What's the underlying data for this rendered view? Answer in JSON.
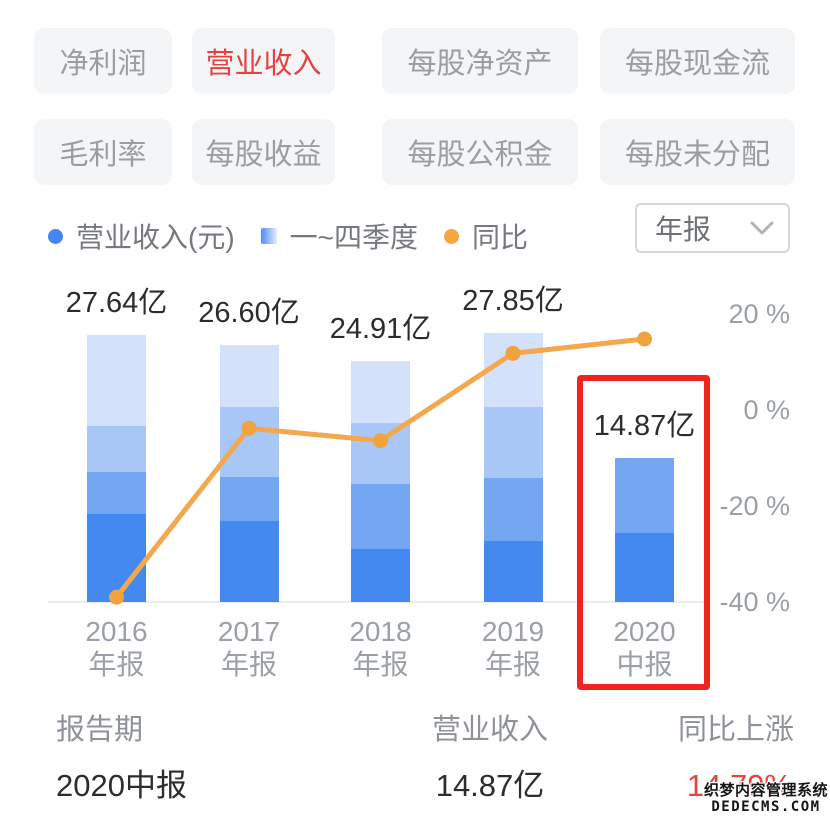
{
  "filters": {
    "row1": [
      {
        "label": "净利润",
        "active": false
      },
      {
        "label": "营业收入",
        "active": true
      },
      {
        "label": "每股净资产",
        "active": false
      },
      {
        "label": "每股现金流",
        "active": false
      }
    ],
    "row2": [
      {
        "label": "毛利率",
        "active": false
      },
      {
        "label": "每股收益",
        "active": false
      },
      {
        "label": "每股公积金",
        "active": false
      },
      {
        "label": "每股未分配",
        "active": false
      }
    ]
  },
  "legend": {
    "items": [
      {
        "label": "营业收入(元)",
        "swatch": "blue-dot"
      },
      {
        "label": "一~四季度",
        "swatch": "blue-gradient-square"
      },
      {
        "label": "同比",
        "swatch": "orange-dot"
      }
    ],
    "period_select": {
      "value": "年报"
    }
  },
  "chart_data": {
    "type": "bar",
    "subtype": "stacked-quarter-bars-with-yoy-line",
    "unit": "亿元",
    "categories": [
      "2016年报",
      "2017年报",
      "2018年报",
      "2019年报",
      "2020中报"
    ],
    "category_lines": [
      [
        "2016",
        "年报"
      ],
      [
        "2017",
        "年报"
      ],
      [
        "2018",
        "年报"
      ],
      [
        "2019",
        "年报"
      ],
      [
        "2020",
        "中报"
      ]
    ],
    "totals": [
      27.64,
      26.6,
      24.91,
      27.85,
      14.87
    ],
    "total_labels": [
      "27.64亿",
      "26.60亿",
      "24.91亿",
      "27.85亿",
      "14.87亿"
    ],
    "series": [
      {
        "name": "一季度",
        "values": [
          9.1,
          8.4,
          5.5,
          6.3,
          7.15
        ]
      },
      {
        "name": "二季度",
        "values": [
          4.35,
          4.5,
          6.7,
          6.5,
          7.72
        ]
      },
      {
        "name": "三季度",
        "values": [
          4.75,
          7.25,
          6.35,
          7.35,
          null
        ]
      },
      {
        "name": "四季度",
        "values": [
          9.44,
          6.45,
          6.36,
          7.7,
          null
        ]
      }
    ],
    "line_series": {
      "name": "同比",
      "unit": "%",
      "values": [
        -39,
        -3.8,
        -6.4,
        11.8,
        14.79
      ]
    },
    "right_axis": {
      "range": [
        -40,
        20
      ],
      "ticks": [
        {
          "label": "20 %",
          "value": 20
        },
        {
          "label": "0 %",
          "value": 0
        },
        {
          "label": "-20 %",
          "value": -20
        },
        {
          "label": "-40 %",
          "value": -40
        }
      ]
    },
    "highlight_index": 4,
    "grid": false,
    "legend_position": "top"
  },
  "table": {
    "headers": [
      "报告期",
      "营业收入",
      "同比上涨"
    ],
    "row": {
      "period": "2020中报",
      "revenue": "14.87亿",
      "yoy": "14.79%"
    }
  },
  "watermark": {
    "line1": "织梦内容管理系统",
    "line2": "DEDECMS.COM"
  },
  "colors": {
    "active_filter": "#e64242",
    "revenue_dot": "#4487f2",
    "yoy_dot": "#f5a63d",
    "quarters": [
      "#4489f0",
      "#73a7f2",
      "#a9c7f6",
      "#d3e1fa"
    ],
    "line": "#f4a84d",
    "line_dot": "#f0a23c",
    "highlight_box": "#f2231e",
    "yoy_value_red": "#e6453f"
  }
}
